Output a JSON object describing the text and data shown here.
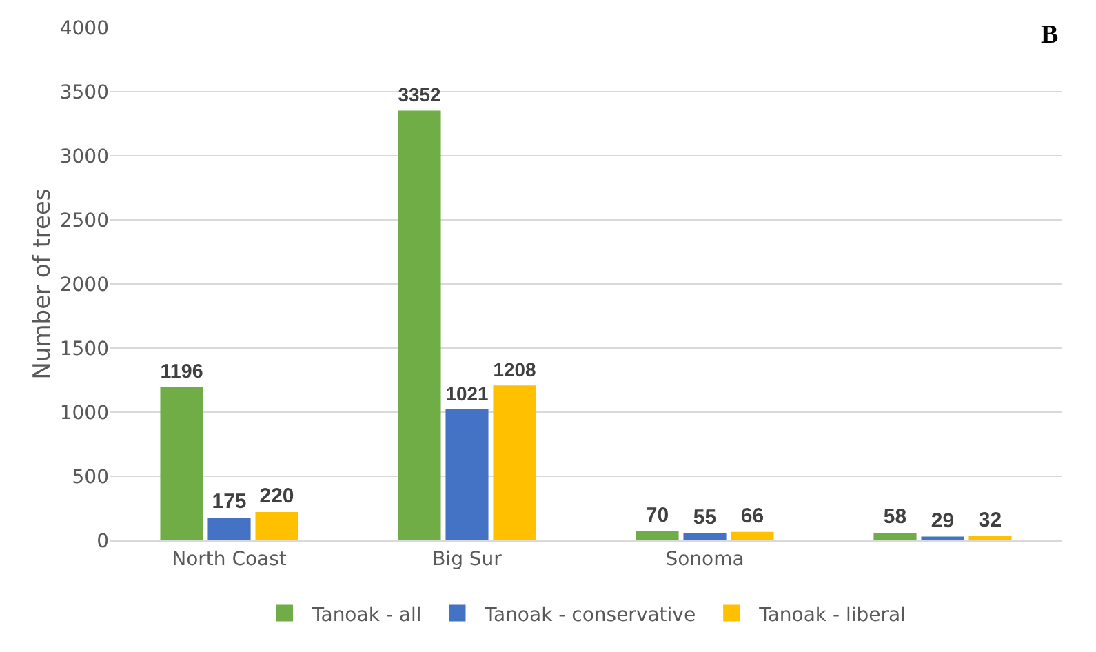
{
  "chart_data": {
    "type": "bar",
    "ylabel": "Number of trees",
    "categories": [
      "North Coast",
      "Big Sur",
      "Sonoma",
      null
    ],
    "series": [
      {
        "name": "Tanoak - all",
        "color": "#70ad47",
        "values": [
          1196,
          3352,
          70,
          58
        ]
      },
      {
        "name": "Tanoak - conservative",
        "color": "#4472c4",
        "values": [
          175,
          1021,
          55,
          29
        ]
      },
      {
        "name": "Tanoak - liberal",
        "color": "#ffc000",
        "values": [
          220,
          1208,
          66,
          32
        ]
      }
    ],
    "ylim": [
      0,
      4000
    ],
    "yticks": [
      0,
      500,
      1000,
      1500,
      2000,
      2500,
      3000,
      3500,
      4000
    ],
    "grid": "y",
    "legend": "bottom",
    "data_labels": true,
    "annotations": [
      "B"
    ]
  }
}
